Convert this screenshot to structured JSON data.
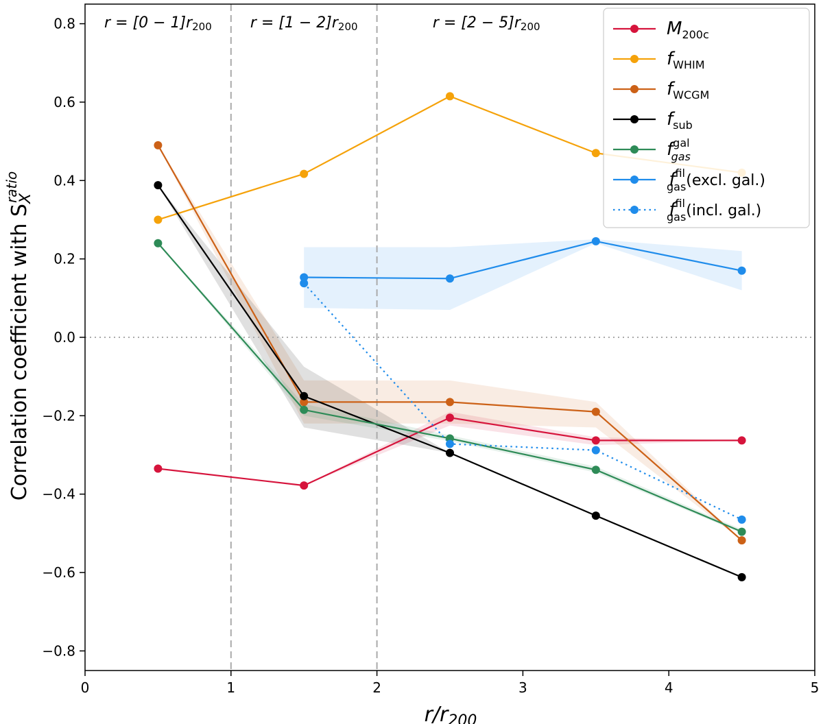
{
  "chart_data": {
    "type": "line",
    "xlabel": {
      "base": "r/r",
      "sub": "200"
    },
    "ylabel": {
      "base": "Correlation coefficient with S",
      "sub": "X",
      "sup": "ratio"
    },
    "xlim": [
      0,
      5
    ],
    "ylim": [
      -0.85,
      0.85
    ],
    "xticks": [
      0,
      1,
      2,
      3,
      4,
      5
    ],
    "xtick_labels": [
      "0",
      "1",
      "2",
      "3",
      "4",
      "5"
    ],
    "yticks": [
      -0.8,
      -0.6,
      -0.4,
      -0.2,
      0.0,
      0.2,
      0.4,
      0.6,
      0.8
    ],
    "ytick_labels": [
      "−0.8",
      "−0.6",
      "−0.4",
      "−0.2",
      "0.0",
      "0.2",
      "0.4",
      "0.6",
      "0.8"
    ],
    "vlines": [
      1,
      2
    ],
    "hline": 0,
    "region_labels": [
      {
        "x": 0.5,
        "pre": "r = [0 − 1]r",
        "sub": "200"
      },
      {
        "x": 1.5,
        "pre": "r = [1 − 2]r",
        "sub": "200"
      },
      {
        "x": 2.75,
        "pre": "r = [2 − 5]r",
        "sub": "200"
      }
    ],
    "legend_position": "top-right",
    "series": [
      {
        "name": "M200c",
        "label": {
          "base": "M",
          "sub": "200c",
          "sup": ""
        },
        "color": "#d6143c",
        "style": "solid",
        "x": [
          0.5,
          1.5,
          2.5,
          3.5,
          4.5
        ],
        "values": [
          -0.335,
          -0.378,
          -0.205,
          -0.263,
          -0.263
        ],
        "band_lower": [
          -0.335,
          -0.378,
          -0.225,
          -0.275,
          -0.263
        ],
        "band_upper": [
          -0.335,
          -0.378,
          -0.19,
          -0.255,
          -0.263
        ]
      },
      {
        "name": "fWHIM",
        "label": {
          "base": "f",
          "sub": "WHIM",
          "sup": ""
        },
        "color": "#f5a20a",
        "style": "solid",
        "x": [
          0.5,
          1.5,
          2.5,
          3.5,
          4.5
        ],
        "values": [
          0.3,
          0.417,
          0.615,
          0.47,
          0.42
        ],
        "band_lower": null,
        "band_upper": null
      },
      {
        "name": "fWCGM",
        "label": {
          "base": "f",
          "sub": "WCGM",
          "sup": ""
        },
        "color": "#cc6117",
        "style": "solid",
        "x": [
          0.5,
          1.5,
          2.5,
          3.5,
          4.5
        ],
        "values": [
          0.49,
          -0.165,
          -0.165,
          -0.19,
          -0.518
        ],
        "band_lower": [
          0.49,
          -0.22,
          -0.22,
          -0.23,
          -0.518
        ],
        "band_upper": [
          0.49,
          -0.11,
          -0.11,
          -0.165,
          -0.518
        ]
      },
      {
        "name": "fsub",
        "label": {
          "base": "f",
          "sub": "sub",
          "sup": ""
        },
        "color": "#000000",
        "style": "solid",
        "x": [
          0.5,
          1.5,
          2.5,
          3.5,
          4.5
        ],
        "values": [
          0.388,
          -0.15,
          -0.295,
          -0.455,
          -0.612
        ],
        "band_lower": [
          0.388,
          -0.23,
          -0.295,
          -0.455,
          -0.612
        ],
        "band_upper": [
          0.388,
          -0.075,
          -0.295,
          -0.455,
          -0.612
        ]
      },
      {
        "name": "fgas_gal",
        "label": {
          "base": "f",
          "sub": "gas",
          "sup": "gal"
        },
        "color": "#2e8b57",
        "style": "solid",
        "x": [
          0.5,
          1.5,
          2.5,
          3.5,
          4.5
        ],
        "values": [
          0.24,
          -0.185,
          -0.258,
          -0.338,
          -0.496
        ],
        "band_lower": [
          0.24,
          -0.2,
          -0.265,
          -0.345,
          -0.5
        ],
        "band_upper": [
          0.24,
          -0.17,
          -0.25,
          -0.33,
          -0.49
        ]
      },
      {
        "name": "fgas_fil_excl",
        "label": {
          "base": "f",
          "sub": "gas",
          "sup": "fil",
          "suffix": "(excl. gal.)"
        },
        "color": "#1f8ceb",
        "style": "solid",
        "x": [
          1.5,
          2.5,
          3.5,
          4.5
        ],
        "values": [
          0.153,
          0.15,
          0.245,
          0.17
        ],
        "band_lower": [
          0.075,
          0.07,
          0.24,
          0.12
        ],
        "band_upper": [
          0.23,
          0.23,
          0.25,
          0.22
        ]
      },
      {
        "name": "fgas_fil_incl",
        "label": {
          "base": "f",
          "sub": "gas",
          "sup": "fil",
          "suffix": "(incl. gal.)"
        },
        "color": "#1f8ceb",
        "style": "dotted",
        "x": [
          1.5,
          2.5,
          3.5,
          4.5
        ],
        "values": [
          0.138,
          -0.272,
          -0.288,
          -0.465
        ],
        "band_lower": null,
        "band_upper": null
      }
    ]
  }
}
